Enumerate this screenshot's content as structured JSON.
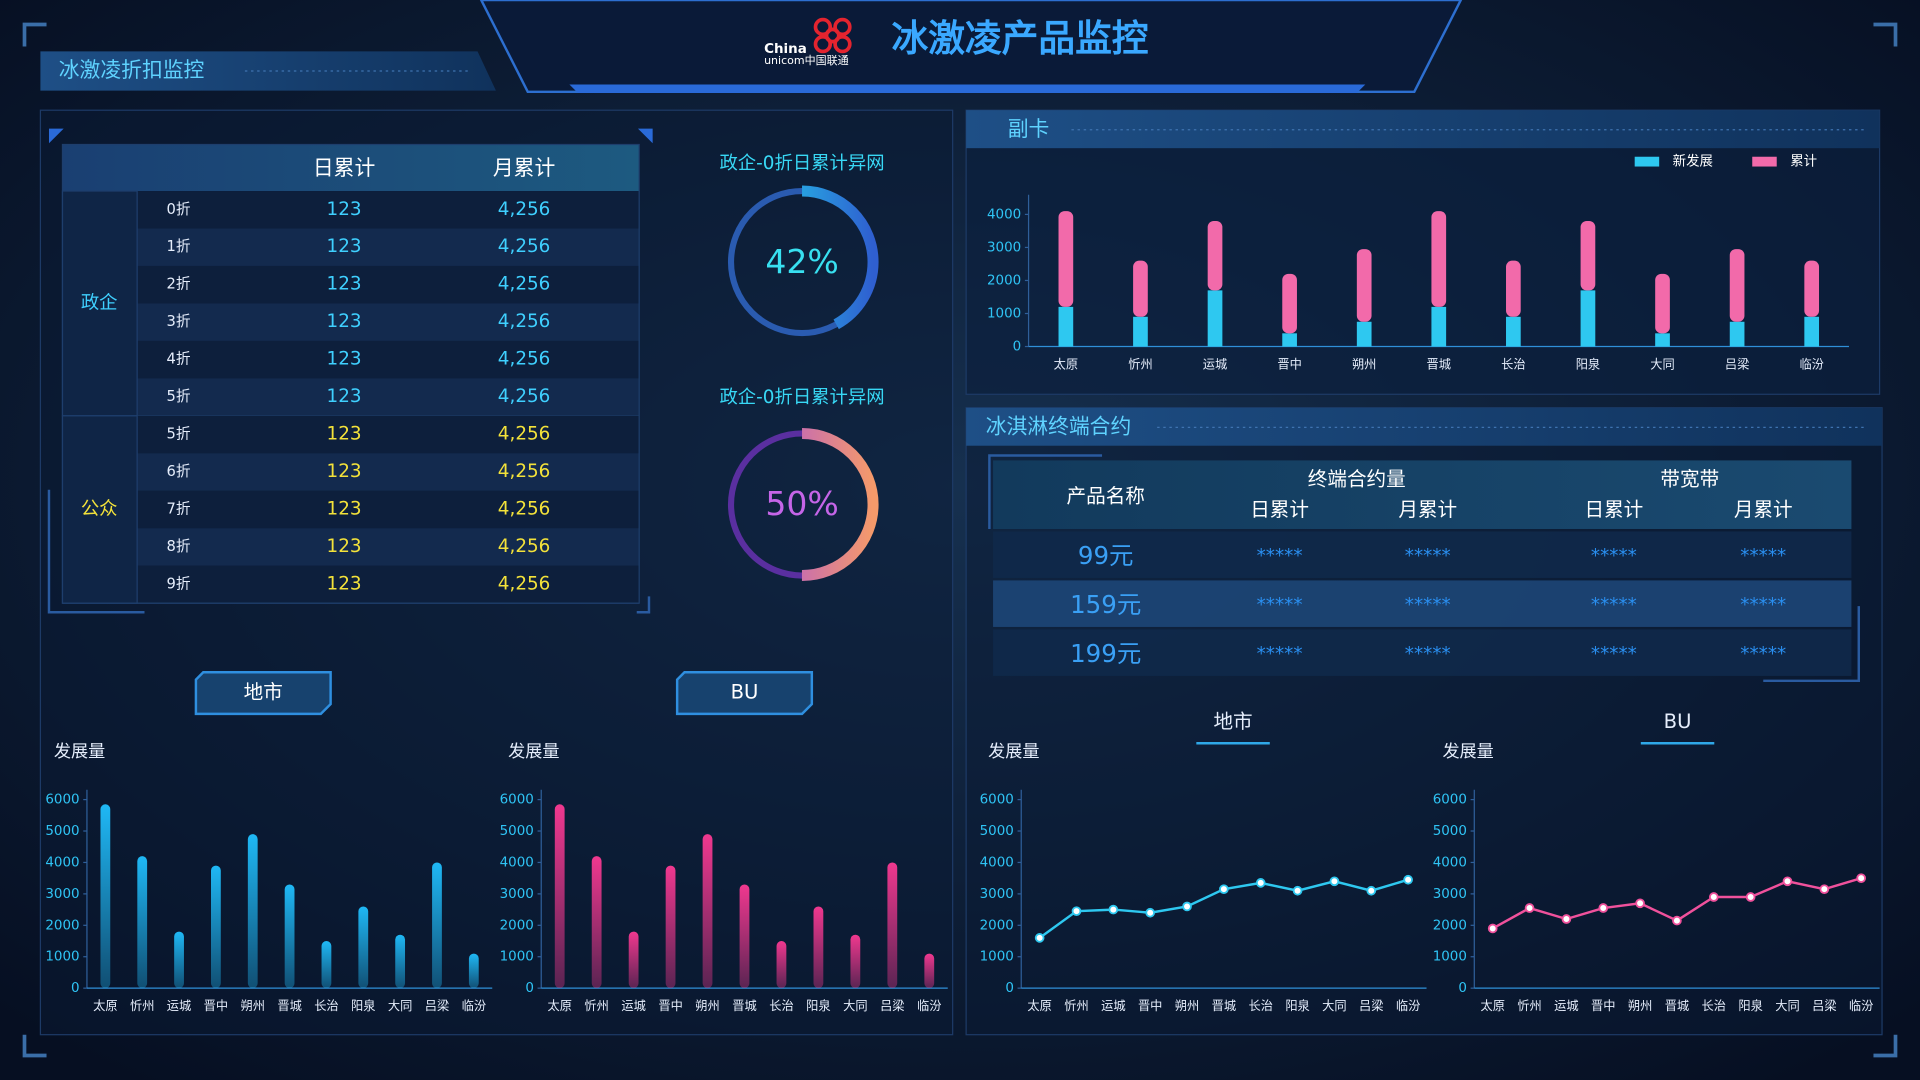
{
  "header": {
    "title": "冰激凌产品监控",
    "logo_lines": [
      "China",
      "unicom中国联通"
    ]
  },
  "discount": {
    "title": "冰激凌折扣监控",
    "table": {
      "header": [
        "日累计",
        "月累计"
      ],
      "groups": [
        {
          "name": "政企",
          "rows": [
            [
              "0折",
              "123",
              "4,256"
            ],
            [
              "1折",
              "123",
              "4,256"
            ],
            [
              "2折",
              "123",
              "4,256"
            ],
            [
              "3折",
              "123",
              "4,256"
            ],
            [
              "4折",
              "123",
              "4,256"
            ],
            [
              "5折",
              "123",
              "4,256"
            ]
          ]
        },
        {
          "name": "公众",
          "rows": [
            [
              "5折",
              "123",
              "4,256"
            ],
            [
              "6折",
              "123",
              "4,256"
            ],
            [
              "7折",
              "123",
              "4,256"
            ],
            [
              "8折",
              "123",
              "4,256"
            ],
            [
              "9折",
              "123",
              "4,256"
            ]
          ]
        }
      ]
    }
  },
  "terminal": {
    "title": "冰淇淋终端合约",
    "product_header": "产品名称",
    "groups": [
      {
        "name": "终端合约量",
        "subs": [
          "日累计",
          "月累计"
        ]
      },
      {
        "name": "带宽带",
        "subs": [
          "日累计",
          "月累计"
        ]
      }
    ],
    "rows": [
      [
        "99元",
        "*****",
        "*****",
        "*****",
        "*****"
      ],
      [
        "159元",
        "*****",
        "*****",
        "*****",
        "*****"
      ],
      [
        "199元",
        "*****",
        "*****",
        "*****",
        "*****"
      ]
    ]
  },
  "chart_data": [
    {
      "type": "stacked_bar",
      "title": "副卡",
      "categories": [
        "太原",
        "忻州",
        "运城",
        "晋中",
        "朔州",
        "晋城",
        "长治",
        "阳泉",
        "大同",
        "吕梁",
        "临汾"
      ],
      "series": [
        {
          "name": "新发展",
          "color": "#2ec8f0",
          "values": [
            1200,
            900,
            1700,
            400,
            750,
            1200,
            900,
            1700,
            400,
            750,
            900
          ]
        },
        {
          "name": "累计",
          "color": "#f26aaa",
          "values": [
            2900,
            1700,
            2100,
            1800,
            2200,
            2900,
            1700,
            2100,
            1800,
            2200,
            1700
          ]
        }
      ],
      "ylim": [
        0,
        4300
      ],
      "yticks": [
        0,
        1000,
        2000,
        3000,
        4000
      ],
      "legend": "top-right"
    },
    {
      "type": "bar",
      "title": "地市",
      "y_label": "发展量",
      "categories": [
        "太原",
        "忻州",
        "运城",
        "晋中",
        "朔州",
        "晋城",
        "长治",
        "阳泉",
        "大同",
        "吕梁",
        "临汾"
      ],
      "values": [
        5850,
        4200,
        1800,
        3900,
        4900,
        3300,
        1500,
        2600,
        1700,
        4000,
        1100
      ],
      "color": "#1fb8f5",
      "ylim": [
        0,
        6000
      ],
      "yticks": [
        0,
        1000,
        2000,
        3000,
        4000,
        5000,
        6000
      ]
    },
    {
      "type": "bar",
      "title": "BU",
      "y_label": "发展量",
      "categories": [
        "太原",
        "忻州",
        "运城",
        "晋中",
        "朔州",
        "晋城",
        "长治",
        "阳泉",
        "大同",
        "吕梁",
        "临汾"
      ],
      "values": [
        5850,
        4200,
        1800,
        3900,
        4900,
        3300,
        1500,
        2600,
        1700,
        4000,
        1100
      ],
      "color": "#f0388f",
      "ylim": [
        0,
        6000
      ],
      "yticks": [
        0,
        1000,
        2000,
        3000,
        4000,
        5000,
        6000
      ]
    },
    {
      "type": "line",
      "title": "地市",
      "y_label": "发展量",
      "categories": [
        "太原",
        "忻州",
        "运城",
        "晋中",
        "朔州",
        "晋城",
        "长治",
        "阳泉",
        "大同",
        "吕梁",
        "临汾"
      ],
      "values": [
        1600,
        2450,
        2500,
        2400,
        2600,
        3150,
        3350,
        3100,
        3400,
        3100,
        3450
      ],
      "color": "#2ec8f0",
      "ylim": [
        0,
        6000
      ],
      "yticks": [
        0,
        1000,
        2000,
        3000,
        4000,
        5000,
        6000
      ]
    },
    {
      "type": "line",
      "title": "BU",
      "y_label": "发展量",
      "categories": [
        "太原",
        "忻州",
        "运城",
        "晋中",
        "朔州",
        "晋城",
        "长治",
        "阳泉",
        "大同",
        "吕梁",
        "临汾"
      ],
      "values": [
        1900,
        2550,
        2200,
        2550,
        2700,
        2150,
        2900,
        2900,
        3400,
        3150,
        3500
      ],
      "color": "#f0519c",
      "ylim": [
        0,
        6000
      ],
      "yticks": [
        0,
        1000,
        2000,
        3000,
        4000,
        5000,
        6000
      ]
    },
    {
      "type": "donut",
      "title": "政企-0折日累计异网",
      "values": [
        42
      ],
      "value_labels": [
        "42%"
      ],
      "colors": [
        "#20e0f0",
        "#2f5fd0"
      ],
      "color": "#38e0f0"
    },
    {
      "type": "donut",
      "title": "政企-0折日累计异网",
      "values": [
        50
      ],
      "value_labels": [
        "50%"
      ],
      "colors": [
        "#a248e8",
        "#f59a6a"
      ],
      "color": "#c565e8"
    }
  ]
}
